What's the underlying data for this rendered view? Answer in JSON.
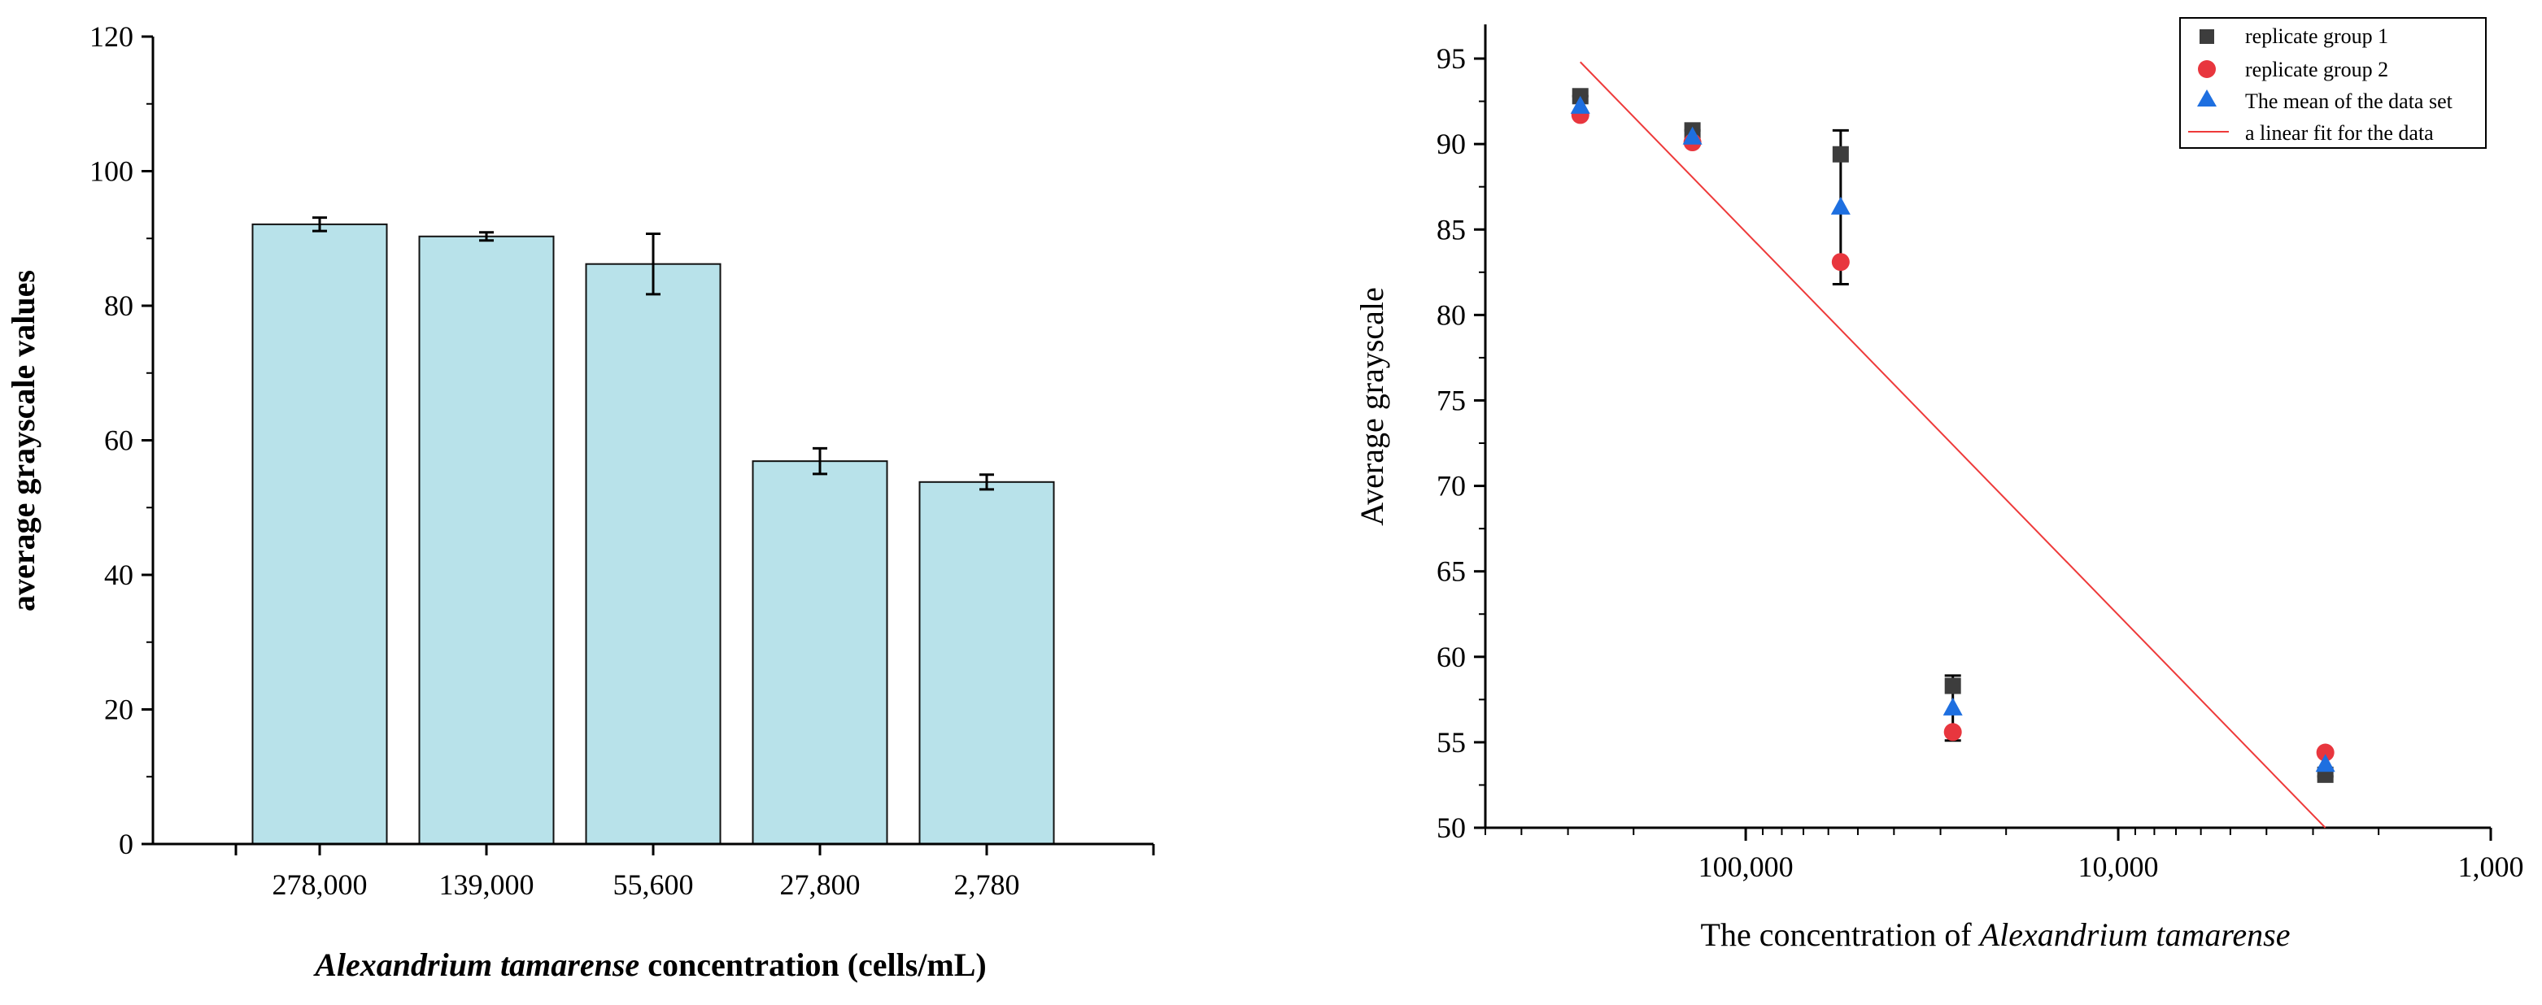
{
  "colors": {
    "bar_fill": "#b8e2ea",
    "bar_stroke": "#111111",
    "axis": "#000000",
    "replicate1": "#3d3d3d",
    "replicate2": "#e8363e",
    "mean": "#1e6fe0",
    "fit_line": "#ee3a3a"
  },
  "chart_data": [
    {
      "type": "bar",
      "title": "",
      "xlabel_italic": "Alexandrium tamarense",
      "xlabel_rest": " concentration (cells/mL)",
      "ylabel": "average grayscale values",
      "categories": [
        "278,000",
        "139,000",
        "55,600",
        "27,800",
        "2,780"
      ],
      "values": [
        92.1,
        90.3,
        86.2,
        56.9,
        53.8
      ],
      "errors": [
        1.0,
        0.6,
        4.5,
        1.9,
        1.1
      ],
      "ylim": [
        0,
        120
      ],
      "yticks": [
        "0",
        "20",
        "40",
        "60",
        "80",
        "100",
        "120"
      ],
      "grid": false
    },
    {
      "type": "scatter",
      "title": "",
      "xlabel_prefix": "The concentration of ",
      "xlabel_italic": "Alexandrium tamarense",
      "ylabel": "Average grayscale",
      "xscale": "log-reversed",
      "xlim": [
        500000,
        1000
      ],
      "ylim": [
        50,
        97
      ],
      "xtick_values": [
        100000,
        10000,
        1000
      ],
      "xtick_labels": [
        "100,000",
        "10,000",
        "1,000"
      ],
      "yticks": [
        "50",
        "55",
        "60",
        "65",
        "70",
        "75",
        "80",
        "85",
        "90",
        "95"
      ],
      "legend_position": "top-right",
      "series": [
        {
          "name": "replicate group 1",
          "marker": "square",
          "x": [
            278000,
            139000,
            55600,
            27800,
            2780
          ],
          "y": [
            92.8,
            90.8,
            89.4,
            58.3,
            53.1
          ]
        },
        {
          "name": "replicate group 2",
          "marker": "circle",
          "x": [
            278000,
            139000,
            55600,
            27800,
            2780
          ],
          "y": [
            91.7,
            90.1,
            83.1,
            55.6,
            54.4
          ]
        },
        {
          "name": "The mean of the data set",
          "marker": "triangle",
          "x": [
            278000,
            139000,
            55600,
            27800,
            2780
          ],
          "y": [
            92.2,
            90.4,
            86.3,
            57.0,
            53.7
          ],
          "errors": [
            0.6,
            0.4,
            4.5,
            1.9,
            0.7
          ]
        },
        {
          "name": "a linear fit for the data",
          "marker": "line",
          "x": [
            278000,
            2780
          ],
          "y": [
            94.8,
            50.0
          ]
        }
      ],
      "grid": false
    }
  ]
}
